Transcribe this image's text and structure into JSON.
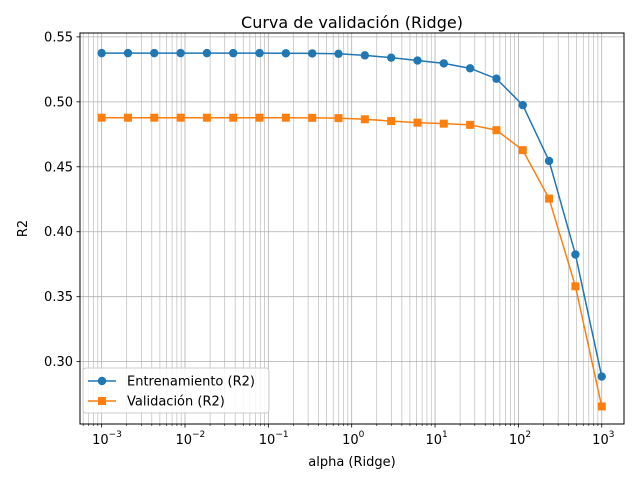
{
  "chart_data": {
    "type": "line",
    "title": "Curva de validación (Ridge)",
    "xlabel": "alpha (Ridge)",
    "ylabel": "R2",
    "xscale": "log",
    "xlim": [
      0.00055,
      1850
    ],
    "ylim": [
      0.252,
      0.553
    ],
    "x_ticks": [
      0.001,
      0.01,
      0.1,
      1,
      10,
      100,
      1000
    ],
    "x_tick_labels": [
      "10",
      "10",
      "10",
      "10",
      "10",
      "10",
      "10"
    ],
    "x_tick_exponents": [
      "−3",
      "−2",
      "−1",
      "0",
      "1",
      "2",
      "3"
    ],
    "y_ticks": [
      0.3,
      0.35,
      0.4,
      0.45,
      0.5,
      0.55
    ],
    "y_tick_labels": [
      "0.30",
      "0.35",
      "0.40",
      "0.45",
      "0.50",
      "0.55"
    ],
    "grid": "both-major-minor",
    "legend_position": "lower-left",
    "x": [
      0.001,
      0.00207,
      0.00428,
      0.00886,
      0.01833,
      0.03793,
      0.07848,
      0.16238,
      0.33598,
      0.69519,
      1.43845,
      2.97635,
      6.15848,
      12.74275,
      26.36651,
      54.55595,
      112.88379,
      233.57215,
      483.29302,
      1000
    ],
    "series": [
      {
        "name": "Entrenamiento (R2)",
        "color": "#1f77b4",
        "marker": "circle",
        "values": [
          0.5375,
          0.5375,
          0.5375,
          0.5375,
          0.5375,
          0.5375,
          0.5375,
          0.5374,
          0.5373,
          0.537,
          0.5358,
          0.534,
          0.5318,
          0.5296,
          0.5258,
          0.5178,
          0.4975,
          0.4545,
          0.3825,
          0.2885
        ]
      },
      {
        "name": "Validación (R2)",
        "color": "#ff7f0e",
        "marker": "square",
        "values": [
          0.4878,
          0.4878,
          0.4878,
          0.4878,
          0.4878,
          0.4878,
          0.4878,
          0.4878,
          0.4877,
          0.4875,
          0.4866,
          0.4852,
          0.484,
          0.4832,
          0.4823,
          0.4782,
          0.4628,
          0.4255,
          0.358,
          0.2655
        ]
      }
    ]
  }
}
